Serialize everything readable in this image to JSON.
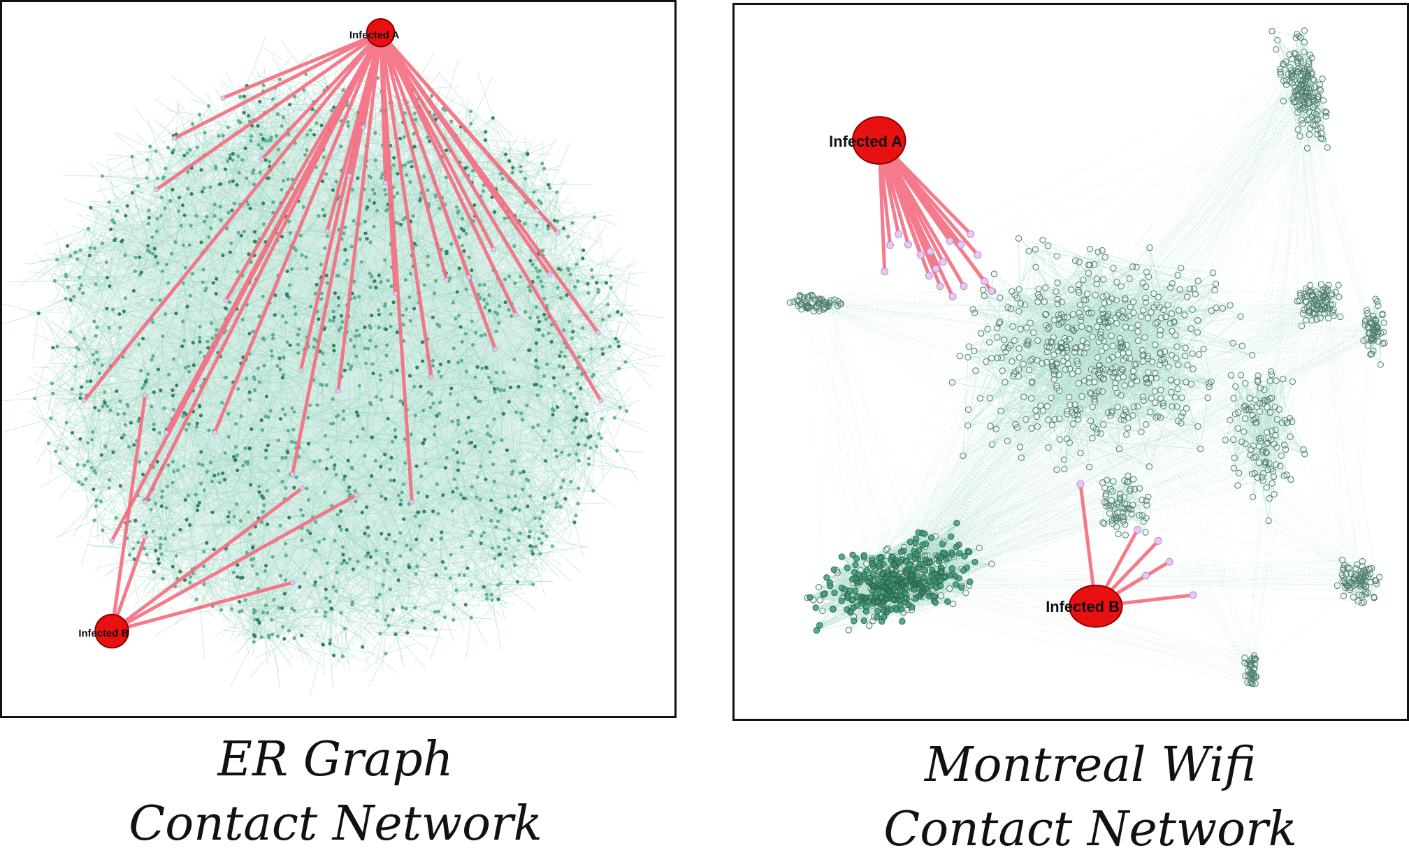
{
  "panels": [
    {
      "id": "er",
      "caption_line1": "ER Graph",
      "caption_line2": "Contact Network",
      "infected_a_label": "Infected A",
      "infected_b_label": "Infected B"
    },
    {
      "id": "montreal",
      "caption_line1": "Montreal Wifi",
      "caption_line2": "Contact Network",
      "infected_a_label": "Infected A",
      "infected_b_label": "Infected B"
    }
  ],
  "colors": {
    "edge": "#7cc9ae",
    "node": "#3f9c78",
    "node_dark": "#1f6e4e",
    "infection_edge": "#f46b7e",
    "infected_node": "#e81010",
    "contact_node": "#e6c8f0"
  }
}
